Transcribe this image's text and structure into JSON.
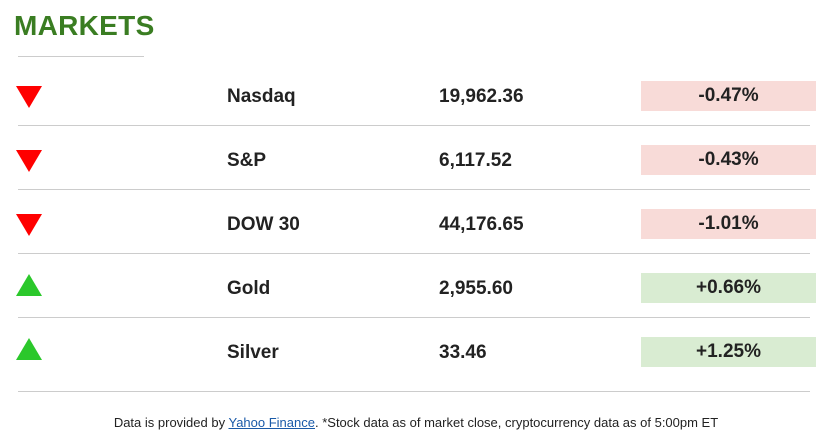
{
  "header": {
    "title": "MARKETS"
  },
  "colors": {
    "title": "#3a7d22",
    "down_arrow": "#ff0000",
    "up_arrow": "#2bc82b",
    "negative_bg": "#f8dbd8",
    "positive_bg": "#d9ecd2",
    "link": "#1a5aa8"
  },
  "markets": [
    {
      "name": "Nasdaq",
      "value": "19,962.36",
      "change": "-0.47%",
      "direction": "down",
      "icon": "down-triangle-icon"
    },
    {
      "name": "S&P",
      "value": "6,117.52",
      "change": "-0.43%",
      "direction": "down",
      "icon": "down-triangle-icon"
    },
    {
      "name": "DOW 30",
      "value": "44,176.65",
      "change": "-1.01%",
      "direction": "down",
      "icon": "down-triangle-icon"
    },
    {
      "name": "Gold",
      "value": "2,955.60",
      "change": "+0.66%",
      "direction": "up",
      "icon": "up-triangle-icon"
    },
    {
      "name": "Silver",
      "value": "33.46",
      "change": "+1.25%",
      "direction": "up",
      "icon": "up-triangle-icon"
    }
  ],
  "footer": {
    "prefix": "Data is provided by ",
    "link_label": "Yahoo Finance",
    "suffix": ". *Stock data as of market close, cryptocurrency data as of 5:00pm ET"
  }
}
